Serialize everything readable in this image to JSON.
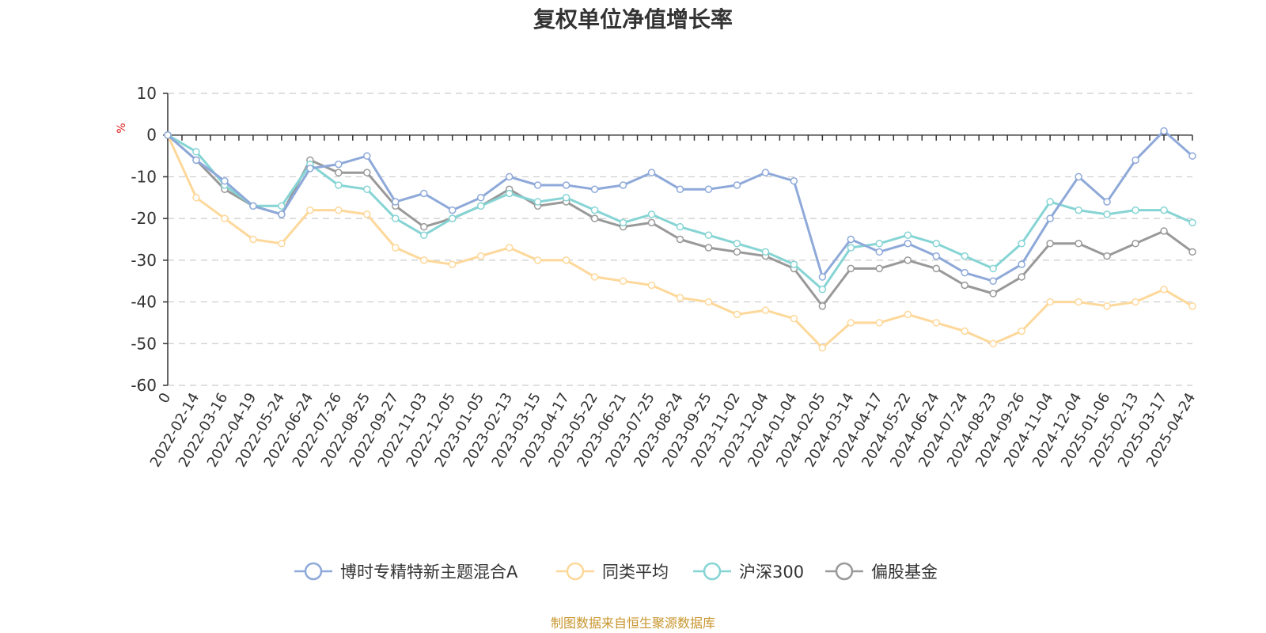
{
  "chart_data": {
    "type": "line",
    "title": "复权单位净值增长率",
    "ylabel": "%",
    "ylim": [
      -60,
      10
    ],
    "yticks": [
      10,
      0,
      -10,
      -20,
      -30,
      -40,
      -50,
      -60
    ],
    "grid": true,
    "legend_position": "bottom",
    "x": [
      "0",
      "2022-02-14",
      "2022-03-16",
      "2022-04-19",
      "2022-05-24",
      "2022-06-24",
      "2022-07-26",
      "2022-08-25",
      "2022-09-27",
      "2022-11-03",
      "2022-12-05",
      "2023-01-05",
      "2023-02-13",
      "2023-03-15",
      "2023-04-17",
      "2023-05-22",
      "2023-06-21",
      "2023-07-25",
      "2023-08-24",
      "2023-09-25",
      "2023-11-02",
      "2023-12-04",
      "2024-01-04",
      "2024-02-05",
      "2024-03-14",
      "2024-04-17",
      "2024-05-22",
      "2024-06-24",
      "2024-07-24",
      "2024-08-23",
      "2024-09-26",
      "2024-11-04",
      "2024-12-04",
      "2025-01-06",
      "2025-02-13",
      "2025-03-17",
      "2025-04-24"
    ],
    "series": [
      {
        "name": "博时专精特新主题混合A",
        "color": "#8ea9d9",
        "values": [
          0,
          -6,
          -11,
          -17,
          -19,
          -8,
          -7,
          -5,
          -16,
          -14,
          -18,
          -15,
          -10,
          -12,
          -12,
          -13,
          -12,
          -9,
          -13,
          -13,
          -12,
          -9,
          -11,
          -34,
          -25,
          -28,
          -26,
          -29,
          -33,
          -35,
          -31,
          -20,
          -10,
          -16,
          -6,
          1,
          -5
        ]
      },
      {
        "name": "同类平均",
        "color": "#fdd89a",
        "values": [
          0,
          -15,
          -20,
          -25,
          -26,
          -18,
          -18,
          -19,
          -27,
          -30,
          -31,
          -29,
          -27,
          -30,
          -30,
          -34,
          -35,
          -36,
          -39,
          -40,
          -43,
          -42,
          -44,
          -51,
          -45,
          -45,
          -43,
          -45,
          -47,
          -50,
          -47,
          -40,
          -40,
          -41,
          -40,
          -37,
          -41
        ]
      },
      {
        "name": "沪深300",
        "color": "#86d4d4",
        "values": [
          0,
          -4,
          -12,
          -17,
          -17,
          -7,
          -12,
          -13,
          -20,
          -24,
          -20,
          -17,
          -14,
          -16,
          -15,
          -18,
          -21,
          -19,
          -22,
          -24,
          -26,
          -28,
          -31,
          -37,
          -27,
          -26,
          -24,
          -26,
          -29,
          -32,
          -26,
          -16,
          -18,
          -19,
          -18,
          -18,
          -21
        ]
      },
      {
        "name": "偏股基金",
        "color": "#999999",
        "values": [
          0,
          -6,
          -13,
          -17,
          -19,
          -6,
          -9,
          -9,
          -17,
          -22,
          -20,
          -17,
          -13,
          -17,
          -16,
          -20,
          -22,
          -21,
          -25,
          -27,
          -28,
          -29,
          -32,
          -41,
          -32,
          -32,
          -30,
          -32,
          -36,
          -38,
          -34,
          -26,
          -26,
          -29,
          -26,
          -23,
          -28
        ]
      }
    ]
  },
  "footer": {
    "source": "制图数据来自恒生聚源数据库"
  }
}
